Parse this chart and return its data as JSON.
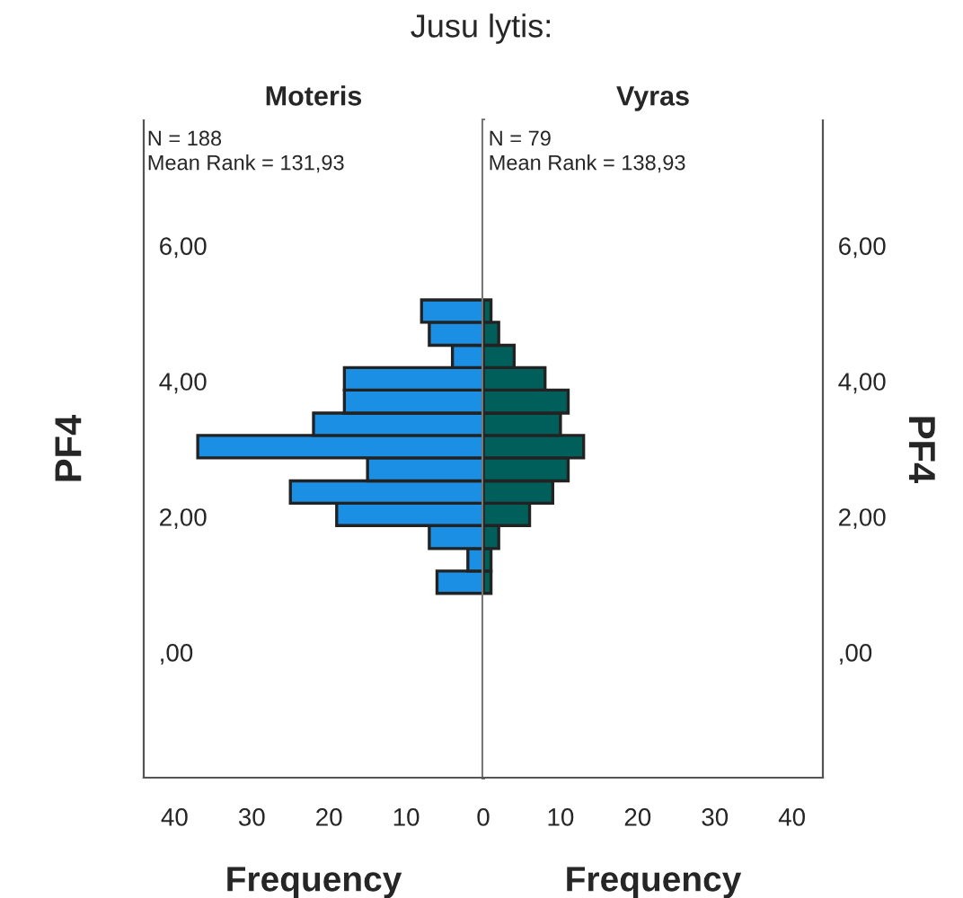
{
  "chart_data": [
    {
      "type": "histogram",
      "orientation": "horizontal",
      "title": "Jusu lytis:",
      "subtitle": "Moteris",
      "xlabel": "Frequency",
      "ylabel": "PF4",
      "color": "#1a8fe3",
      "bins": [
        0.87,
        1.2,
        1.53,
        1.87,
        2.2,
        2.53,
        2.87,
        3.2,
        3.53,
        3.87,
        4.2,
        4.53,
        4.87,
        5.2
      ],
      "values": [
        6,
        2,
        7,
        19,
        25,
        15,
        37,
        22,
        18,
        18,
        4,
        7,
        8
      ],
      "xlim": [
        44,
        0
      ],
      "xticks": [
        40,
        30,
        20,
        10,
        0
      ],
      "ylim": [
        -1.85,
        7.85
      ],
      "yticks": [
        {
          "value": 0,
          "label": ",00"
        },
        {
          "value": 2,
          "label": "2,00"
        },
        {
          "value": 4,
          "label": "4,00"
        },
        {
          "value": 6,
          "label": "6,00"
        }
      ],
      "annotations": [
        "N = 188",
        "Mean Rank = 131,93"
      ],
      "grid": false
    },
    {
      "type": "histogram",
      "orientation": "horizontal",
      "subtitle": "Vyras",
      "xlabel": "Frequency",
      "ylabel": "PF4",
      "color": "#005f5b",
      "bins": [
        0.87,
        1.2,
        1.53,
        1.87,
        2.2,
        2.53,
        2.87,
        3.2,
        3.53,
        3.87,
        4.2,
        4.53,
        4.87,
        5.2
      ],
      "values": [
        1,
        1,
        2,
        6,
        9,
        11,
        13,
        10,
        11,
        8,
        4,
        2,
        1
      ],
      "xlim": [
        0,
        44
      ],
      "xticks": [
        10,
        20,
        30,
        40
      ],
      "ylim": [
        -1.85,
        7.85
      ],
      "yticks": [
        {
          "value": 0,
          "label": ",00"
        },
        {
          "value": 2,
          "label": "2,00"
        },
        {
          "value": 4,
          "label": "4,00"
        },
        {
          "value": 6,
          "label": "6,00"
        }
      ],
      "annotations": [
        "N = 79",
        "Mean Rank = 138,93"
      ],
      "grid": false
    }
  ]
}
